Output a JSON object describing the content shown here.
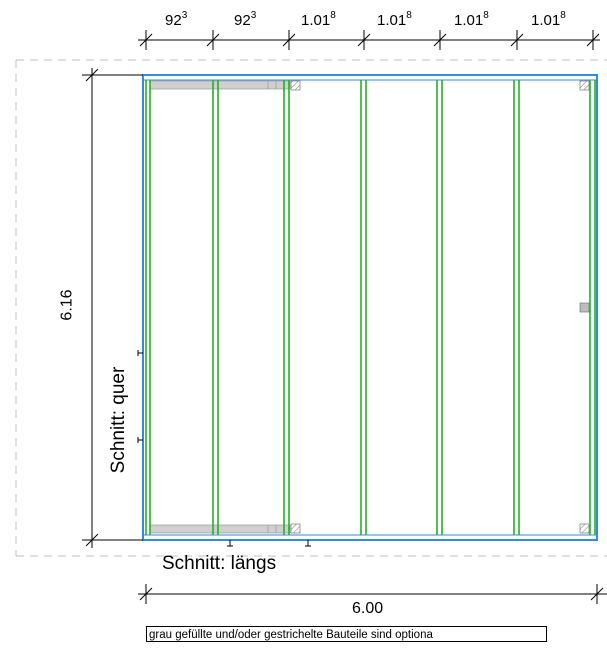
{
  "top_dimensions": [
    {
      "main": "92",
      "sup": "3"
    },
    {
      "main": "92",
      "sup": "3"
    },
    {
      "main": "1.01",
      "sup": "8"
    },
    {
      "main": "1.01",
      "sup": "8"
    },
    {
      "main": "1.01",
      "sup": "8"
    },
    {
      "main": "1.01",
      "sup": "8"
    }
  ],
  "depth_label": "6.16",
  "width_label": "6.00",
  "section_cross_label": "Schnitt:  quer",
  "section_long_label": "Schnitt:  längs",
  "note": "grau gefüllte und/oder gestrichelte Bauteile sind optiona",
  "colors": {
    "frame": "#2e8de0",
    "rafter": "#1fb51f",
    "optional_fill": "#cfcfcf",
    "dashed": "#c0c0c0"
  }
}
